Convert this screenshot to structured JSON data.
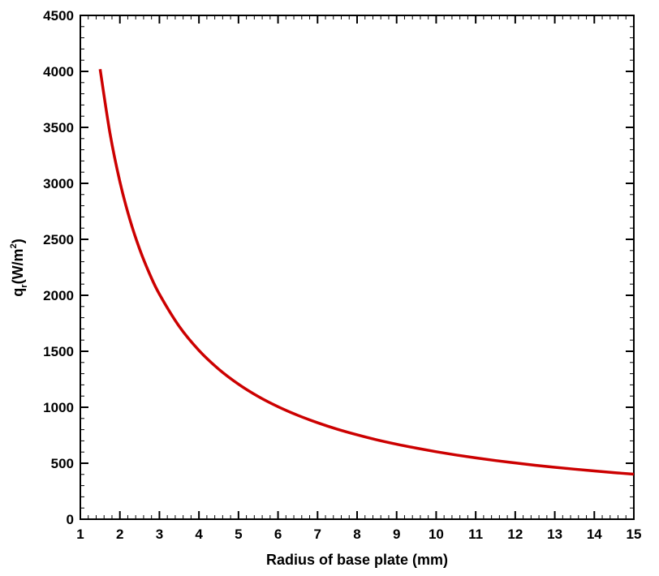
{
  "chart_data": {
    "type": "line",
    "title": "",
    "xlabel": "Radius of base plate (mm)",
    "ylabel": {
      "base": "q",
      "subscript": "r",
      "unit_open": "(W/m",
      "superscript": "2",
      "unit_close": ")"
    },
    "xlim": [
      1,
      15
    ],
    "ylim": [
      0,
      4500
    ],
    "x_major_ticks": [
      1,
      2,
      3,
      4,
      5,
      6,
      7,
      8,
      9,
      10,
      11,
      12,
      13,
      14,
      15
    ],
    "x_tick_labels": [
      "1",
      "2",
      "3",
      "4",
      "5",
      "6",
      "7",
      "8",
      "9",
      "10",
      "11",
      "12",
      "13",
      "14",
      "15"
    ],
    "y_major_ticks": [
      0,
      500,
      1000,
      1500,
      2000,
      2500,
      3000,
      3500,
      4000,
      4500
    ],
    "y_tick_labels": [
      "0",
      "500",
      "1000",
      "1500",
      "2000",
      "2500",
      "3000",
      "3500",
      "4000",
      "4500"
    ],
    "minor_ticks_per_major": 4,
    "grid": false,
    "legend": "none",
    "series": [
      {
        "color": "#cc0000",
        "x": [
          1.5,
          1.75,
          2,
          2.25,
          2.5,
          2.75,
          3,
          3.5,
          4,
          4.5,
          5,
          5.5,
          6,
          6.5,
          7,
          7.5,
          8,
          8.5,
          9,
          9.5,
          10,
          10.5,
          11,
          11.5,
          12,
          12.5,
          13,
          13.5,
          14,
          14.5,
          15
        ],
        "y": [
          4020,
          3446,
          3015,
          2680,
          2412,
          2193,
          2010,
          1723,
          1508,
          1340,
          1206,
          1096,
          1005,
          928,
          862,
          804,
          754,
          709,
          670,
          635,
          603,
          574,
          548,
          524,
          503,
          482,
          464,
          447,
          431,
          416,
          402
        ]
      }
    ]
  }
}
